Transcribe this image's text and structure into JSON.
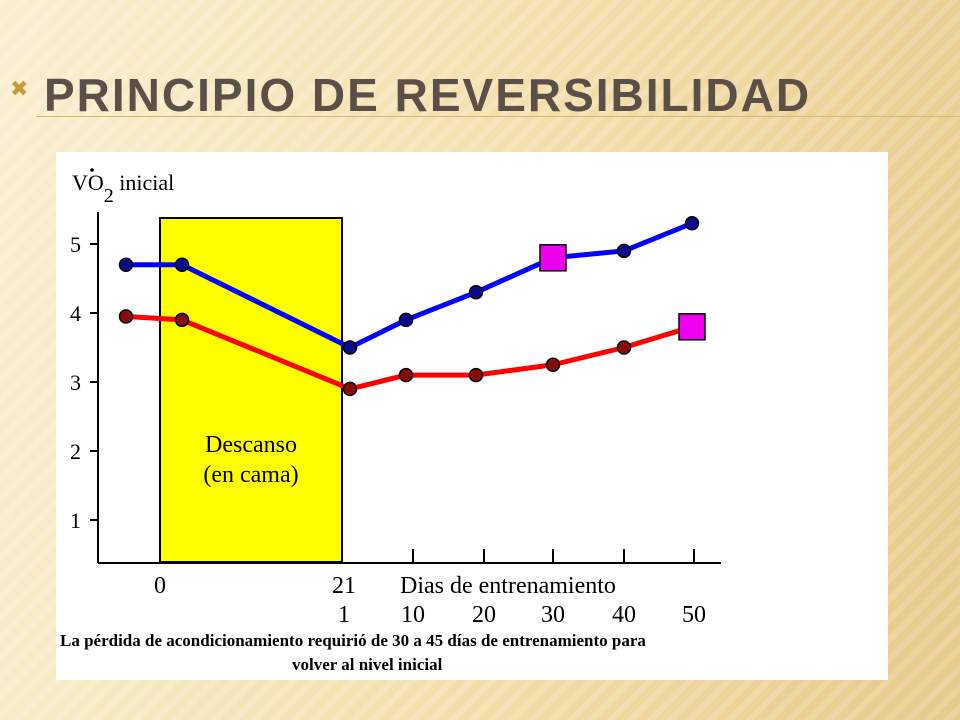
{
  "slide": {
    "title": "PRINCIPIO DE REVERSIBILIDAD",
    "bullet": "✖"
  },
  "chart_data": {
    "type": "line",
    "ylabel_main": "VO",
    "ylabel_sub": "2",
    "ylabel_rest": " inicial",
    "yticks": [
      "1",
      "2",
      "3",
      "4",
      "5"
    ],
    "ylim": [
      0.5,
      5.8
    ],
    "rest_box": {
      "label_line1": "Descanso",
      "label_line2": "(en cama)",
      "color": "#ffff00"
    },
    "x_top_labels": [
      "0",
      "21"
    ],
    "x_bottom_labels": [
      "1",
      "10",
      "20",
      "30",
      "40",
      "50"
    ],
    "xlabel": "Dias de entrenamiento",
    "series": [
      {
        "color": "#0000ff",
        "points": [
          4.7,
          4.7,
          3.5,
          3.9,
          4.3,
          4.8,
          4.9,
          5.3
        ],
        "marker_index": 5
      },
      {
        "color": "#ff0000",
        "points": [
          3.95,
          3.9,
          2.9,
          3.1,
          3.1,
          3.25,
          3.5,
          3.8
        ],
        "marker_index": 7
      }
    ],
    "marker_color": "#ee00ee",
    "caption_line1": "La pérdida de acondicionamiento requirió de 30 a 45 días de entrenamiento para",
    "caption_line2": "volver al nivel inicial"
  }
}
